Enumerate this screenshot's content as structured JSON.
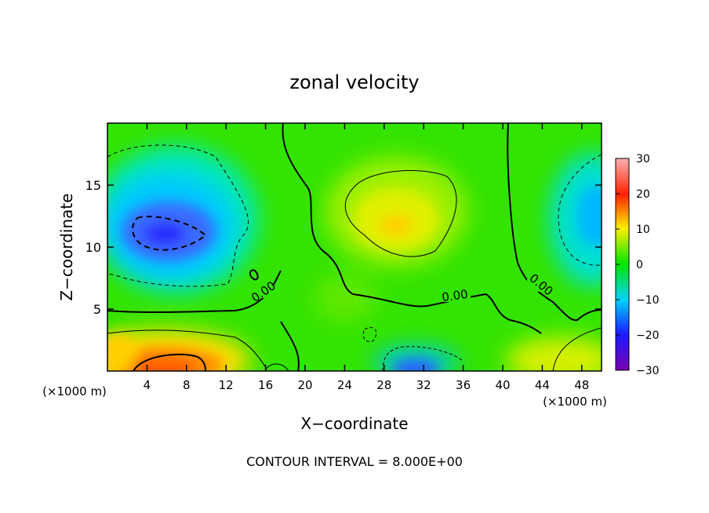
{
  "chart_data": {
    "type": "heatmap",
    "title": "zonal velocity",
    "xlabel": "X−coordinate",
    "ylabel": "Z−coordinate",
    "x_unit_left": "(×1000 m)",
    "x_unit_right": "(×1000 m)",
    "xlim": [
      0,
      50
    ],
    "ylim": [
      0,
      20
    ],
    "xticks": [
      4,
      8,
      12,
      16,
      20,
      24,
      28,
      32,
      36,
      40,
      44,
      48
    ],
    "yticks": [
      5,
      10,
      15
    ],
    "colorbar": {
      "range": [
        -30,
        30
      ],
      "ticks": [
        30,
        20,
        10,
        0,
        -10,
        -20,
        -30
      ],
      "colors": [
        "#7a00b0",
        "#1a1aff",
        "#00d2ff",
        "#00e600",
        "#ffee00",
        "#ff2200",
        "#ffb0b0"
      ]
    },
    "contour_label": "0.00",
    "contour_interval_text": "CONTOUR INTERVAL = 8.000E+00",
    "features": [
      {
        "name": "negative-core-left",
        "x": 6,
        "z": 11,
        "value": -20
      },
      {
        "name": "positive-core-bottom-left",
        "x": 7,
        "z": 1,
        "value": 17
      },
      {
        "name": "positive-center",
        "x": 29,
        "z": 12,
        "value": 10
      },
      {
        "name": "negative-bottom-center",
        "x": 31,
        "z": 0.5,
        "value": -14
      },
      {
        "name": "negative-right",
        "x": 49,
        "z": 12,
        "value": -8
      },
      {
        "name": "positive-bottom-right",
        "x": 46,
        "z": 1,
        "value": 9
      }
    ]
  }
}
